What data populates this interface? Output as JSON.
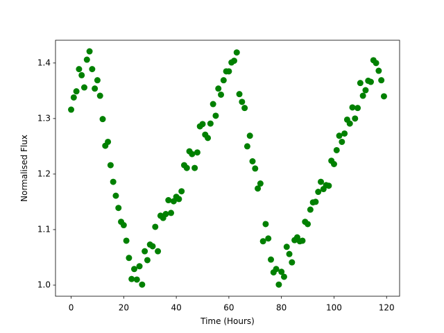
{
  "chart_data": {
    "type": "scatter",
    "x_label": "Time (Hours)",
    "y_label": "Normalised Flux",
    "color": "#008000",
    "x": [
      0,
      1,
      2,
      3,
      4,
      5,
      6,
      7,
      8,
      9,
      10,
      11,
      12,
      13,
      14,
      15,
      16,
      17,
      18,
      19,
      20,
      21,
      22,
      23,
      24,
      25,
      26,
      27,
      28,
      29,
      30,
      31,
      32,
      33,
      34,
      35,
      36,
      37,
      38,
      39,
      40,
      41,
      42,
      43,
      44,
      45,
      46,
      47,
      48,
      49,
      50,
      51,
      52,
      53,
      54,
      55,
      56,
      57,
      58,
      59,
      60,
      61,
      62,
      63,
      64,
      65,
      66,
      67,
      68,
      69,
      70,
      71,
      72,
      73,
      74,
      75,
      76,
      77,
      78,
      79,
      80,
      81,
      82,
      83,
      84,
      85,
      86,
      87,
      88,
      89,
      90,
      91,
      92,
      93,
      94,
      95,
      96,
      97,
      98,
      99,
      100,
      101,
      102,
      103,
      104,
      105,
      106,
      107,
      108,
      109,
      110,
      111,
      112,
      113,
      114,
      115,
      116,
      117,
      118,
      119
    ],
    "values": [
      1.316,
      1.338,
      1.349,
      1.389,
      1.378,
      1.356,
      1.406,
      1.421,
      1.389,
      1.354,
      1.369,
      1.341,
      1.299,
      1.251,
      1.258,
      1.216,
      1.186,
      1.161,
      1.139,
      1.114,
      1.108,
      1.08,
      1.049,
      1.011,
      1.029,
      1.01,
      1.034,
      1.001,
      1.061,
      1.045,
      1.073,
      1.07,
      1.105,
      1.061,
      1.125,
      1.121,
      1.128,
      1.153,
      1.13,
      1.151,
      1.159,
      1.155,
      1.169,
      1.216,
      1.211,
      1.241,
      1.236,
      1.211,
      1.239,
      1.286,
      1.29,
      1.271,
      1.265,
      1.291,
      1.326,
      1.305,
      1.354,
      1.343,
      1.369,
      1.385,
      1.385,
      1.401,
      1.404,
      1.419,
      1.344,
      1.33,
      1.319,
      1.25,
      1.269,
      1.223,
      1.21,
      1.174,
      1.183,
      1.079,
      1.11,
      1.084,
      1.046,
      1.023,
      1.029,
      1.001,
      1.024,
      1.015,
      1.069,
      1.056,
      1.041,
      1.081,
      1.086,
      1.079,
      1.08,
      1.114,
      1.11,
      1.136,
      1.149,
      1.15,
      1.168,
      1.186,
      1.173,
      1.18,
      1.179,
      1.224,
      1.218,
      1.243,
      1.269,
      1.258,
      1.273,
      1.298,
      1.291,
      1.32,
      1.3,
      1.319,
      1.364,
      1.341,
      1.351,
      1.368,
      1.366,
      1.405,
      1.4,
      1.386,
      1.369,
      1.34
    ],
    "xlim": [
      -5.95,
      124.95
    ],
    "xticks": [
      0,
      20,
      40,
      60,
      80,
      100,
      120
    ],
    "ylim": [
      0.98,
      1.441
    ],
    "yticks": [
      {
        "value": 1,
        "label": "1.0"
      },
      1.1,
      1.2,
      1.3,
      1.4
    ]
  }
}
